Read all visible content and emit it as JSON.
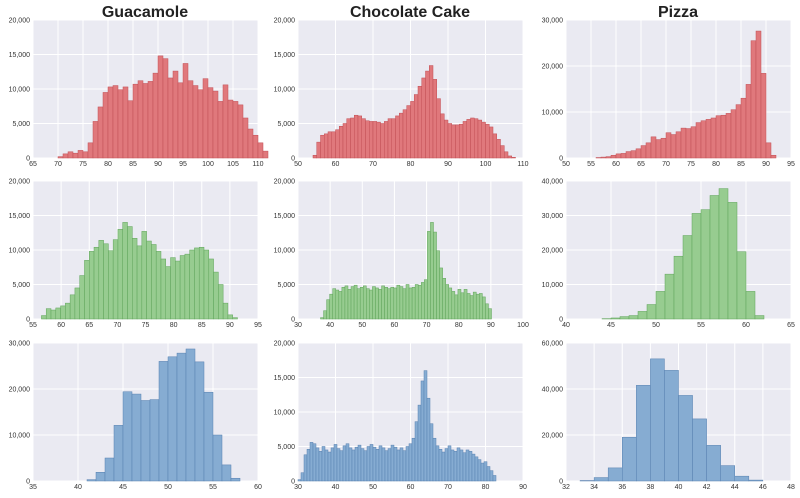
{
  "columns": [
    "Guacamole",
    "Chocolate Cake",
    "Pizza"
  ],
  "colors": {
    "panel_bg": "#EAEAF2",
    "grid": "#FFFFFF",
    "red_fill": "#E0787C",
    "red_edge": "#C24E55",
    "green_fill": "#97CC90",
    "green_edge": "#5FA45A",
    "blue_fill": "#86ACD2",
    "blue_edge": "#5780B0"
  },
  "chart_data": [
    {
      "type": "bar",
      "id": "guacamole-row1",
      "color": "red",
      "xlim": [
        65,
        110
      ],
      "xticks": [
        65,
        70,
        75,
        80,
        85,
        90,
        95,
        100,
        105,
        110
      ],
      "ylim": [
        0,
        20000
      ],
      "yticks": [
        0,
        5000,
        10000,
        15000,
        20000
      ],
      "xtick_labels": [
        "65",
        "70",
        "75",
        "80",
        "85",
        "90",
        "95",
        "100",
        "105",
        "110"
      ],
      "ytick_labels": [
        "0",
        "5,000",
        "10,000",
        "15,000",
        "20,000"
      ],
      "bin_start": 70,
      "bin_width": 1,
      "values": [
        200,
        600,
        900,
        700,
        1100,
        900,
        2200,
        5300,
        7400,
        9500,
        10300,
        10500,
        9900,
        10300,
        8300,
        10700,
        11200,
        10800,
        11100,
        12300,
        14800,
        14400,
        11600,
        12600,
        10900,
        13700,
        11200,
        10500,
        9900,
        11500,
        10200,
        9700,
        8200,
        10600,
        8400,
        8200,
        7700,
        5800,
        4200,
        3300,
        2200,
        1000
      ]
    },
    {
      "type": "bar",
      "id": "chocolate-row1",
      "color": "red",
      "xlim": [
        50,
        110
      ],
      "xticks": [
        50,
        60,
        70,
        80,
        90,
        100,
        110
      ],
      "ylim": [
        0,
        20000
      ],
      "yticks": [
        0,
        5000,
        10000,
        15000,
        20000
      ],
      "xtick_labels": [
        "50",
        "60",
        "70",
        "80",
        "90",
        "100",
        "110"
      ],
      "ytick_labels": [
        "0",
        "5,000",
        "10,000",
        "15,000",
        "20,000"
      ],
      "bin_start": 54,
      "bin_width": 1,
      "values": [
        400,
        2300,
        3300,
        3500,
        3800,
        3800,
        4100,
        4600,
        5000,
        5700,
        5800,
        6200,
        6100,
        5700,
        5400,
        5300,
        5300,
        5200,
        5000,
        5300,
        5700,
        5700,
        6100,
        6500,
        7000,
        7600,
        8200,
        9200,
        10400,
        11600,
        12600,
        13400,
        11400,
        8600,
        6400,
        5500,
        5000,
        4800,
        4800,
        4900,
        5300,
        5600,
        5800,
        5700,
        5500,
        5200,
        4900,
        4500,
        3500,
        2700,
        1800,
        900,
        300,
        100
      ]
    },
    {
      "type": "bar",
      "id": "pizza-row1",
      "color": "red",
      "xlim": [
        50,
        95
      ],
      "xticks": [
        50,
        55,
        60,
        65,
        70,
        75,
        80,
        85,
        90,
        95
      ],
      "ylim": [
        0,
        30000
      ],
      "yticks": [
        0,
        10000,
        20000,
        30000
      ],
      "xtick_labels": [
        "50",
        "55",
        "60",
        "65",
        "70",
        "75",
        "80",
        "85",
        "90",
        "95"
      ],
      "ytick_labels": [
        "0",
        "10,000",
        "20,000",
        "30,000"
      ],
      "bin_start": 56,
      "bin_width": 1,
      "values": [
        100,
        200,
        300,
        600,
        900,
        1000,
        1400,
        1600,
        2000,
        2700,
        3300,
        4600,
        4000,
        4300,
        5500,
        5100,
        5700,
        6500,
        6400,
        6800,
        7700,
        8100,
        8400,
        8700,
        9200,
        9300,
        9700,
        10500,
        11600,
        13000,
        16000,
        25500,
        27600,
        18400,
        3300,
        600
      ]
    },
    {
      "type": "bar",
      "id": "guacamole-row2",
      "color": "green",
      "xlim": [
        55,
        95
      ],
      "xticks": [
        55,
        60,
        65,
        70,
        75,
        80,
        85,
        90,
        95
      ],
      "ylim": [
        0,
        20000
      ],
      "yticks": [
        0,
        5000,
        10000,
        15000,
        20000
      ],
      "xtick_labels": [
        "55",
        "60",
        "65",
        "70",
        "75",
        "80",
        "85",
        "90",
        "95"
      ],
      "ytick_labels": [
        "0",
        "5,000",
        "10,000",
        "15,000",
        "20,000"
      ],
      "bin_start": 56.5,
      "bin_width": 0.85,
      "values": [
        500,
        1500,
        1300,
        1600,
        1900,
        2300,
        3500,
        4500,
        6300,
        8500,
        9800,
        10400,
        11400,
        10900,
        9900,
        11500,
        13000,
        14000,
        13400,
        11700,
        10600,
        12700,
        11300,
        10800,
        9800,
        8700,
        7600,
        8900,
        8400,
        9200,
        9400,
        10000,
        10300,
        10400,
        10000,
        8700,
        6800,
        5000,
        2300,
        600,
        200
      ]
    },
    {
      "type": "bar",
      "id": "chocolate-row2",
      "color": "green",
      "xlim": [
        30,
        100
      ],
      "xticks": [
        30,
        40,
        50,
        60,
        70,
        80,
        90,
        100
      ],
      "ylim": [
        0,
        20000
      ],
      "yticks": [
        0,
        5000,
        10000,
        15000,
        20000
      ],
      "xtick_labels": [
        "30",
        "40",
        "50",
        "60",
        "70",
        "80",
        "90",
        "100"
      ],
      "ytick_labels": [
        "0",
        "5,000",
        "10,000",
        "15,000",
        "20,000"
      ],
      "bin_start": 37,
      "bin_width": 0.95,
      "values": [
        200,
        1200,
        2800,
        3600,
        4400,
        4200,
        4000,
        4600,
        4800,
        4300,
        4700,
        4900,
        4400,
        4600,
        4800,
        4400,
        4200,
        4700,
        4500,
        4300,
        4800,
        4600,
        4400,
        4600,
        4500,
        4900,
        4700,
        4400,
        5000,
        4500,
        4600,
        5000,
        4900,
        5300,
        5700,
        12700,
        14000,
        12600,
        9900,
        7400,
        5900,
        5000,
        4500,
        4000,
        3500,
        4300,
        3800,
        4300,
        3700,
        3400,
        3900,
        3600,
        3700,
        3200,
        2200,
        1500
      ]
    },
    {
      "type": "bar",
      "id": "pizza-row2",
      "color": "green",
      "xlim": [
        40,
        65
      ],
      "xticks": [
        40,
        45,
        50,
        55,
        60,
        65
      ],
      "ylim": [
        0,
        40000
      ],
      "yticks": [
        0,
        10000,
        20000,
        30000,
        40000
      ],
      "xtick_labels": [
        "40",
        "45",
        "50",
        "55",
        "60",
        "65"
      ],
      "ytick_labels": [
        "0",
        "10,000",
        "20,000",
        "30,000",
        "40,000"
      ],
      "bin_start": 44,
      "bin_width": 1,
      "values": [
        100,
        300,
        700,
        1000,
        2200,
        4200,
        8000,
        13000,
        18200,
        24200,
        30600,
        31700,
        35800,
        37800,
        33800,
        19500,
        8000,
        1000
      ]
    },
    {
      "type": "bar",
      "id": "guacamole-row3",
      "color": "blue",
      "xlim": [
        35,
        60
      ],
      "xticks": [
        35,
        40,
        45,
        50,
        55,
        60
      ],
      "ylim": [
        0,
        30000
      ],
      "yticks": [
        0,
        10000,
        20000,
        30000
      ],
      "xtick_labels": [
        "35",
        "40",
        "45",
        "50",
        "55",
        "60"
      ],
      "ytick_labels": [
        "0",
        "10,000",
        "20,000",
        "30,000"
      ],
      "bin_start": 41,
      "bin_width": 1,
      "values": [
        300,
        1900,
        5000,
        12100,
        19400,
        18900,
        17500,
        17700,
        26000,
        27000,
        27800,
        28700,
        25900,
        19300,
        10000,
        3500,
        600
      ]
    },
    {
      "type": "bar",
      "id": "chocolate-row3",
      "color": "blue",
      "xlim": [
        30,
        90
      ],
      "xticks": [
        30,
        40,
        50,
        60,
        70,
        80,
        90
      ],
      "ylim": [
        0,
        20000
      ],
      "yticks": [
        0,
        5000,
        10000,
        15000,
        20000
      ],
      "xtick_labels": [
        "30",
        "40",
        "50",
        "60",
        "70",
        "80",
        "90"
      ],
      "ytick_labels": [
        "0",
        "5,000",
        "10,000",
        "15,000",
        "20,000"
      ],
      "bin_start": 30,
      "bin_width": 0.8,
      "values": [
        200,
        1200,
        3800,
        4600,
        5600,
        5400,
        4800,
        4300,
        5000,
        4500,
        4200,
        4800,
        5300,
        4700,
        4400,
        5100,
        5400,
        4800,
        4500,
        4900,
        5200,
        4700,
        4400,
        5000,
        5300,
        4900,
        4600,
        5100,
        4800,
        4400,
        4700,
        5200,
        4900,
        4500,
        4800,
        4400,
        5000,
        5400,
        6200,
        8600,
        11000,
        14500,
        16000,
        12000,
        8300,
        6200,
        5100,
        4600,
        4200,
        4700,
        5100,
        4500,
        4300,
        4800,
        4500,
        4100,
        4500,
        4300,
        3900,
        3500,
        3100,
        2600,
        2800,
        2100,
        1500,
        800
      ]
    },
    {
      "type": "bar",
      "id": "pizza-row3",
      "color": "blue",
      "xlim": [
        32,
        48
      ],
      "xticks": [
        32,
        34,
        36,
        38,
        40,
        42,
        44,
        46,
        48
      ],
      "ylim": [
        0,
        60000
      ],
      "yticks": [
        0,
        20000,
        40000,
        60000
      ],
      "xtick_labels": [
        "32",
        "34",
        "36",
        "38",
        "40",
        "42",
        "44",
        "46",
        "48"
      ],
      "ytick_labels": [
        "0",
        "20,000",
        "40,000",
        "60,000"
      ],
      "bin_start": 33,
      "bin_width": 1,
      "values": [
        200,
        1500,
        5700,
        19000,
        41600,
        53100,
        48100,
        37200,
        27000,
        15500,
        6700,
        2100,
        400
      ]
    }
  ]
}
